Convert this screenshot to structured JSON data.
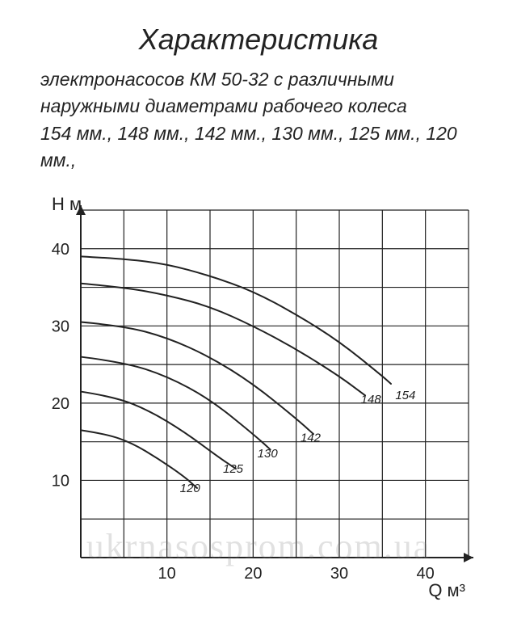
{
  "title": "Характеристика",
  "subtitle": "электронасосов КМ 50-32 с различными\nнаружными диаметрами рабочего колеса\n154 мм., 148 мм., 142 мм., 130 мм., 125 мм., 120 мм.,",
  "watermark": "ukrnasosprom.com.ua",
  "chart": {
    "type": "line",
    "background_color": "#ffffff",
    "grid_color": "#222222",
    "grid_stroke_width": 1.2,
    "axis_stroke_width": 2.0,
    "curve_color": "#222222",
    "curve_stroke_width": 2.0,
    "xlabel": "Q м³",
    "ylabel": "Н м",
    "label_fontsize": 22,
    "tick_fontsize": 20,
    "curve_label_fontsize": 15,
    "xlim": [
      0,
      45
    ],
    "ylim": [
      0,
      45
    ],
    "xtick_step": 10,
    "ytick_step": 10,
    "x_minor_step": 5,
    "y_minor_step": 5,
    "x_tick_labels": [
      10,
      20,
      30,
      40
    ],
    "y_tick_labels": [
      10,
      20,
      30,
      40
    ],
    "curves": [
      {
        "label": "154",
        "label_at": {
          "x": 36.5,
          "y": 20.5
        },
        "points": [
          {
            "x": 0,
            "y": 39.0
          },
          {
            "x": 5,
            "y": 38.7
          },
          {
            "x": 10,
            "y": 38.0
          },
          {
            "x": 15,
            "y": 36.5
          },
          {
            "x": 20,
            "y": 34.5
          },
          {
            "x": 25,
            "y": 31.5
          },
          {
            "x": 30,
            "y": 28.0
          },
          {
            "x": 35,
            "y": 23.5
          },
          {
            "x": 36,
            "y": 22.5
          }
        ]
      },
      {
        "label": "148",
        "label_at": {
          "x": 32.5,
          "y": 20.0
        },
        "points": [
          {
            "x": 0,
            "y": 35.5
          },
          {
            "x": 5,
            "y": 35.0
          },
          {
            "x": 10,
            "y": 34.0
          },
          {
            "x": 15,
            "y": 32.5
          },
          {
            "x": 20,
            "y": 30.0
          },
          {
            "x": 25,
            "y": 27.0
          },
          {
            "x": 30,
            "y": 23.5
          },
          {
            "x": 33,
            "y": 21.0
          }
        ]
      },
      {
        "label": "142",
        "label_at": {
          "x": 25.5,
          "y": 15.0
        },
        "points": [
          {
            "x": 0,
            "y": 30.5
          },
          {
            "x": 5,
            "y": 30.0
          },
          {
            "x": 10,
            "y": 28.5
          },
          {
            "x": 15,
            "y": 26.0
          },
          {
            "x": 20,
            "y": 22.5
          },
          {
            "x": 25,
            "y": 18.0
          },
          {
            "x": 27,
            "y": 16.0
          }
        ]
      },
      {
        "label": "130",
        "label_at": {
          "x": 20.5,
          "y": 13.0
        },
        "points": [
          {
            "x": 0,
            "y": 26.0
          },
          {
            "x": 5,
            "y": 25.3
          },
          {
            "x": 10,
            "y": 23.5
          },
          {
            "x": 15,
            "y": 20.5
          },
          {
            "x": 20,
            "y": 16.0
          },
          {
            "x": 22,
            "y": 14.0
          }
        ]
      },
      {
        "label": "125",
        "label_at": {
          "x": 16.5,
          "y": 11.0
        },
        "points": [
          {
            "x": 0,
            "y": 21.5
          },
          {
            "x": 4,
            "y": 20.8
          },
          {
            "x": 8,
            "y": 19.0
          },
          {
            "x": 12,
            "y": 16.3
          },
          {
            "x": 16,
            "y": 13.0
          },
          {
            "x": 18,
            "y": 11.5
          }
        ]
      },
      {
        "label": "120",
        "label_at": {
          "x": 11.5,
          "y": 8.5
        },
        "points": [
          {
            "x": 0,
            "y": 16.5
          },
          {
            "x": 3,
            "y": 16.0
          },
          {
            "x": 6,
            "y": 14.8
          },
          {
            "x": 9,
            "y": 12.8
          },
          {
            "x": 12,
            "y": 10.5
          },
          {
            "x": 13.5,
            "y": 9.0
          }
        ]
      }
    ]
  }
}
